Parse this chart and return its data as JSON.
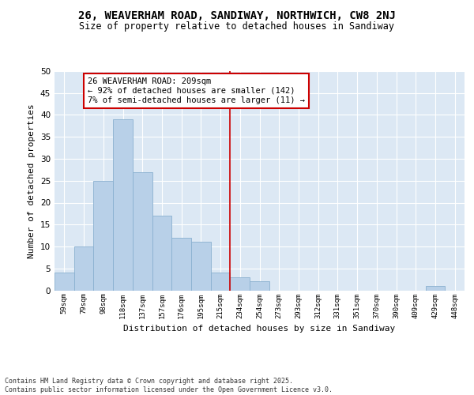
{
  "title_line1": "26, WEAVERHAM ROAD, SANDIWAY, NORTHWICH, CW8 2NJ",
  "title_line2": "Size of property relative to detached houses in Sandiway",
  "xlabel": "Distribution of detached houses by size in Sandiway",
  "ylabel": "Number of detached properties",
  "bar_labels": [
    "59sqm",
    "79sqm",
    "98sqm",
    "118sqm",
    "137sqm",
    "157sqm",
    "176sqm",
    "195sqm",
    "215sqm",
    "234sqm",
    "254sqm",
    "273sqm",
    "293sqm",
    "312sqm",
    "331sqm",
    "351sqm",
    "370sqm",
    "390sqm",
    "409sqm",
    "429sqm",
    "448sqm"
  ],
  "bar_values": [
    4,
    10,
    25,
    39,
    27,
    17,
    12,
    11,
    4,
    3,
    2,
    0,
    0,
    0,
    0,
    0,
    0,
    0,
    0,
    1,
    0
  ],
  "bar_color": "#b8d0e8",
  "bar_edge_color": "#8ab0d0",
  "fig_bg_color": "#ffffff",
  "plot_bg_color": "#dce8f4",
  "grid_color": "#ffffff",
  "vline_color": "#cc0000",
  "vline_x_index": 8.5,
  "annotation_text": "26 WEAVERHAM ROAD: 209sqm\n← 92% of detached houses are smaller (142)\n7% of semi-detached houses are larger (11) →",
  "annotation_box_facecolor": "#ffffff",
  "annotation_box_edgecolor": "#cc0000",
  "ylim": [
    0,
    50
  ],
  "yticks": [
    0,
    5,
    10,
    15,
    20,
    25,
    30,
    35,
    40,
    45,
    50
  ],
  "footnote": "Contains HM Land Registry data © Crown copyright and database right 2025.\nContains public sector information licensed under the Open Government Licence v3.0."
}
